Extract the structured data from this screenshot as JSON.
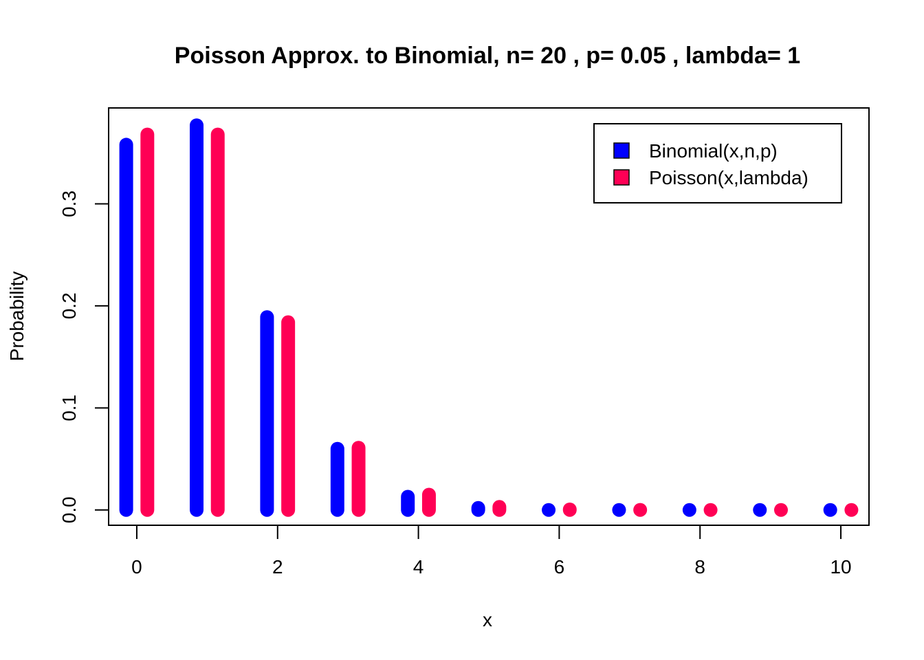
{
  "chart_data": {
    "type": "bar",
    "title": "Poisson Approx. to Binomial, n= 20 , p= 0.05 , lambda= 1",
    "xlabel": "x",
    "ylabel": "Probability",
    "x": [
      0,
      1,
      2,
      3,
      4,
      5,
      6,
      7,
      8,
      9,
      10
    ],
    "xticks": [
      "0",
      "2",
      "4",
      "6",
      "8",
      "10"
    ],
    "yticks": [
      "0.0",
      "0.1",
      "0.2",
      "0.3"
    ],
    "xlim": [
      -0.4,
      10.4
    ],
    "ylim": [
      -0.015,
      0.394
    ],
    "grid": false,
    "legend_position": "top-right",
    "series": [
      {
        "name": "Binomial(x,n,p)",
        "color": "#0000ff",
        "values": [
          0.358,
          0.377,
          0.189,
          0.06,
          0.013,
          0.002,
          0.0,
          0.0,
          0.0,
          0.0,
          0.0
        ]
      },
      {
        "name": "Poisson(x,lambda)",
        "color": "#ff0055",
        "values": [
          0.368,
          0.368,
          0.184,
          0.061,
          0.015,
          0.003,
          0.0005,
          0.0001,
          0.0,
          0.0,
          0.0
        ]
      }
    ]
  }
}
